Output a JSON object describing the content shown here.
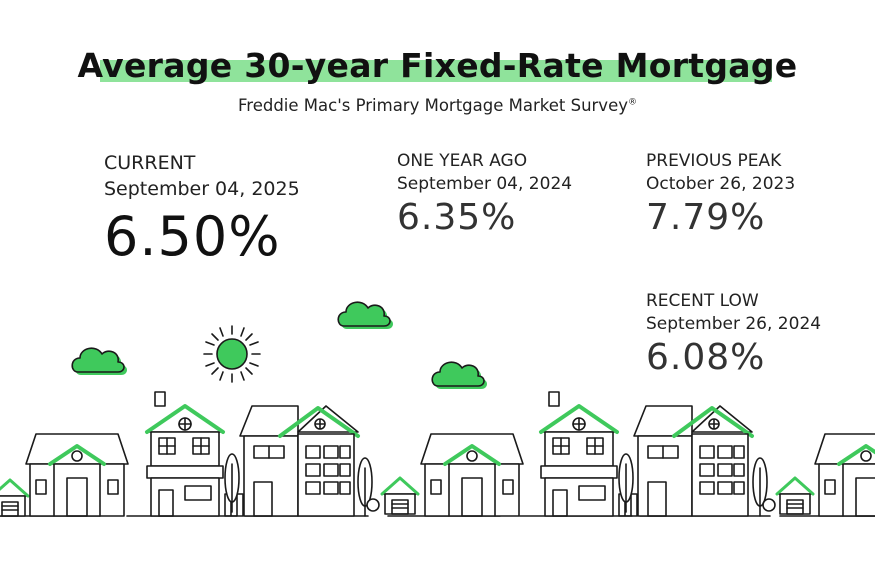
{
  "header": {
    "title": "Average 30-year Fixed-Rate Mortgage",
    "subtitle": "Freddie Mac's Primary Mortgage Market Survey",
    "subtitle_mark": "®"
  },
  "stats": {
    "current": {
      "label": "CURRENT",
      "date": "September 04, 2025",
      "value": "6.50%"
    },
    "one_year_ago": {
      "label": "ONE YEAR AGO",
      "date": "September 04, 2024",
      "value": "6.35%"
    },
    "previous_peak": {
      "label": "PREVIOUS PEAK",
      "date": "October 26, 2023",
      "value": "7.79%"
    },
    "recent_low": {
      "label": "RECENT LOW",
      "date": "September 26, 2024",
      "value": "6.08%"
    }
  },
  "colors": {
    "accent": "#3fc95c",
    "highlight": "#8fe39b",
    "line": "#1a1a1a"
  }
}
